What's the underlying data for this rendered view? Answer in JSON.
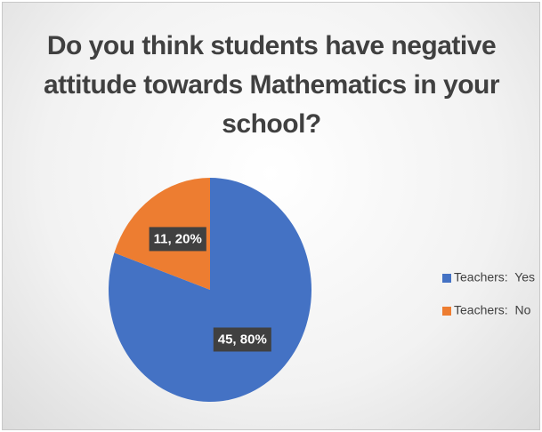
{
  "chart_data": {
    "type": "pie",
    "title": "Do you think students have negative attitude towards Mathematics in your school?",
    "categories": [
      "Teachers:  Yes",
      "Teachers:  No"
    ],
    "values": [
      45,
      11
    ],
    "value_labels": [
      "45, 80%",
      "11, 20%"
    ],
    "colors": [
      "#4472c4",
      "#ed7d31"
    ],
    "legend": "right"
  }
}
